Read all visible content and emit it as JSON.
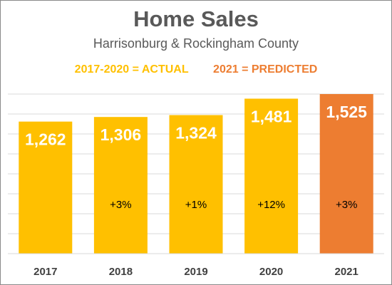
{
  "chart_data": {
    "type": "bar",
    "title": "Home Sales",
    "subtitle": "Harrisonburg & Rockingham County",
    "legend": [
      {
        "label": "2017-2020 = ACTUAL",
        "color": "#FFC000"
      },
      {
        "label": "2021 = PREDICTED",
        "color": "#ED7D31"
      }
    ],
    "categories": [
      "2017",
      "2018",
      "2019",
      "2020",
      "2021"
    ],
    "values": [
      1262,
      1306,
      1324,
      1481,
      1525
    ],
    "value_labels": [
      "1,262",
      "1,306",
      "1,324",
      "1,481",
      "1,525"
    ],
    "change_labels": [
      "",
      "+3%",
      "+1%",
      "+12%",
      "+3%"
    ],
    "bar_colors": [
      "#FFC000",
      "#FFC000",
      "#FFC000",
      "#FFC000",
      "#ED7D31"
    ],
    "ylim": [
      0,
      1600
    ],
    "grid": true,
    "xlabel": "",
    "ylabel": ""
  }
}
